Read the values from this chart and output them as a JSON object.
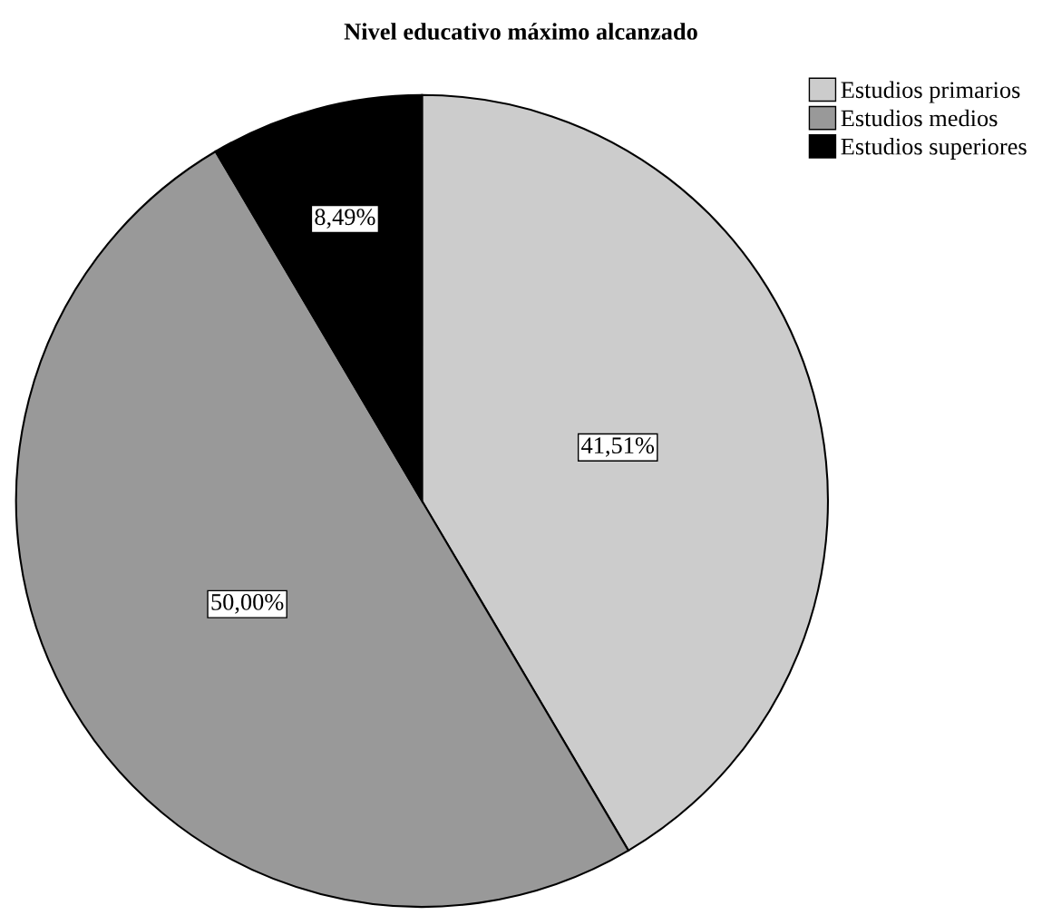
{
  "chart_data": {
    "type": "pie",
    "title": "Nivel educativo máximo alcanzado",
    "categories": [
      "Estudios primarios",
      "Estudios medios",
      "Estudios superiores"
    ],
    "values": [
      41.51,
      50.0,
      8.49
    ],
    "colors": [
      "#cccccc",
      "#999999",
      "#000000"
    ],
    "value_labels": [
      "41,51%",
      "50,00%",
      "8,49%"
    ],
    "legend": "top right"
  }
}
